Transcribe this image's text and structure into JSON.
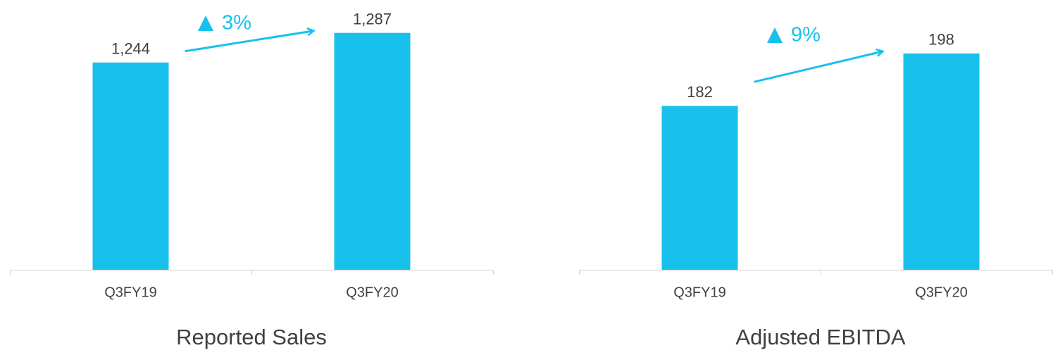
{
  "chart_data": [
    {
      "type": "bar",
      "title": "Reported Sales",
      "categories": [
        "Q3FY19",
        "Q3FY20"
      ],
      "values": [
        1244,
        1287
      ],
      "value_labels": [
        "1,244",
        "1,287"
      ],
      "color": "#17c1ec",
      "ylim": [
        943,
        1300
      ],
      "annotation": "3%"
    },
    {
      "type": "bar",
      "title": "Adjusted EBITDA",
      "categories": [
        "Q3FY19",
        "Q3FY20"
      ],
      "values": [
        182,
        198
      ],
      "color": "#17c1ec",
      "ylim": [
        132,
        207
      ],
      "annotation": "9%"
    }
  ]
}
